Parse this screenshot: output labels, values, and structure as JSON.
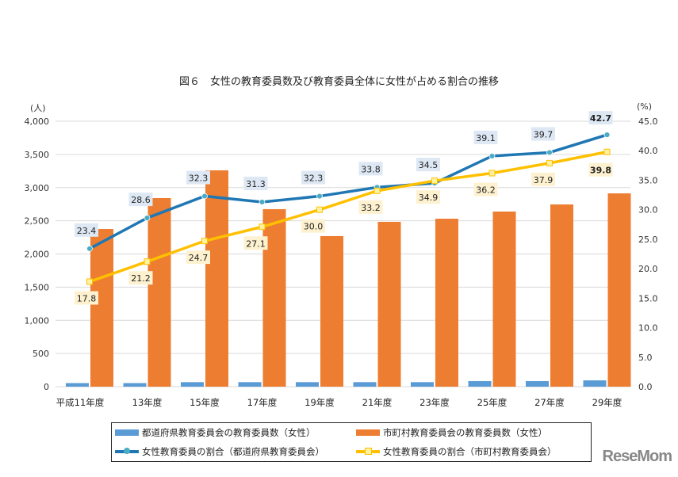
{
  "title": "図６　女性の教育委員数及び教育委員全体に女性が占める割合の推移",
  "logo": "ReseMom",
  "chart_data": {
    "type": "bar+line",
    "title": "図６　女性の教育委員数及び教育委員全体に女性が占める割合の推移",
    "categories": [
      "平成11年度",
      "13年度",
      "15年度",
      "17年度",
      "19年度",
      "21年度",
      "23年度",
      "25年度",
      "27年度",
      "29年度"
    ],
    "left_axis": {
      "unit": "(人)",
      "ylim": [
        0,
        4000
      ],
      "ticks": [
        "0",
        "500",
        "1,000",
        "1,500",
        "2,000",
        "2,500",
        "3,000",
        "3,500",
        "4,000"
      ]
    },
    "right_axis": {
      "unit": "(%)",
      "ylim": [
        0,
        45
      ],
      "ticks": [
        "0.0",
        "5.0",
        "10.0",
        "15.0",
        "20.0",
        "25.0",
        "30.0",
        "35.0",
        "40.0",
        "45.0"
      ]
    },
    "grid": true,
    "legend_position": "bottom",
    "series": [
      {
        "name": "都道府県教育委員会の教育委員数（女性）",
        "type": "bar",
        "axis": "left",
        "color": "#5b9bd5",
        "values": [
          54,
          54,
          68,
          68,
          68,
          68,
          68,
          84,
          84,
          95
        ]
      },
      {
        "name": "市町村教育委員会の教育委員数（女性）",
        "type": "bar",
        "axis": "left",
        "color": "#ed7d31",
        "values": [
          2376,
          2842,
          3260,
          2675,
          2269,
          2484,
          2531,
          2639,
          2746,
          2913
        ]
      },
      {
        "name": "女性教育委員の割合（都道府県教育委員会）",
        "type": "line",
        "axis": "right",
        "color": "#1f77b4",
        "labels": [
          "23.4",
          "28.6",
          "32.3",
          "31.3",
          "32.3",
          "33.8",
          "34.5",
          "39.1",
          "39.7",
          "42.7"
        ],
        "values": [
          23.4,
          28.6,
          32.3,
          31.3,
          32.3,
          33.8,
          34.5,
          39.1,
          39.7,
          42.7
        ]
      },
      {
        "name": "女性教育委員の割合（市町村教育委員会）",
        "type": "line",
        "axis": "right",
        "color": "#ffc000",
        "labels": [
          "17.8",
          "21.2",
          "24.7",
          "27.1",
          "30.0",
          "33.2",
          "34.9",
          "36.2",
          "37.9",
          "39.8"
        ],
        "values": [
          17.8,
          21.2,
          24.7,
          27.1,
          30.0,
          33.2,
          34.9,
          36.2,
          37.9,
          39.8
        ]
      }
    ]
  }
}
